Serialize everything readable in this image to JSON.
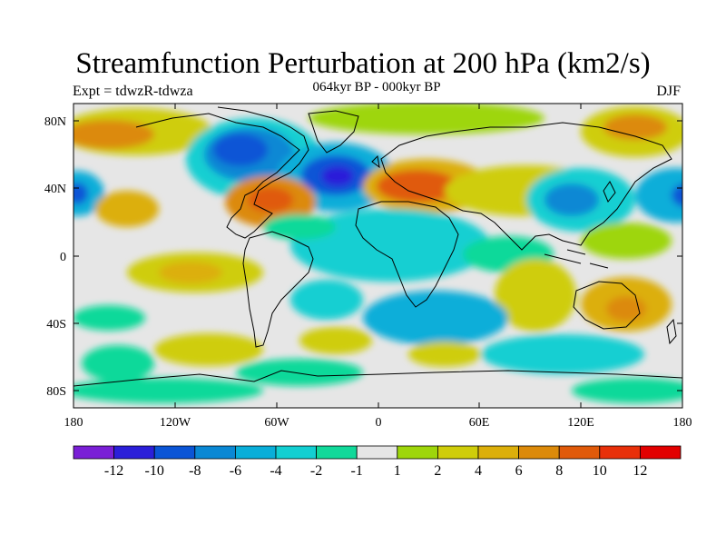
{
  "title": "Streamfunction Perturbation at 200 hPa (km2/s)",
  "subtitle": "064kyr BP - 000kyr BP",
  "left_label": "Expt = tdwzR-tdwza",
  "right_label": "DJF",
  "y_ticks": [
    "80N",
    "40N",
    "0",
    "40S",
    "80S"
  ],
  "x_ticks": [
    "180",
    "120W",
    "60W",
    "0",
    "60E",
    "120E",
    "180"
  ],
  "colorbar": {
    "labels": [
      "-12",
      "-10",
      "-8",
      "-6",
      "-4",
      "-2",
      "-1",
      "1",
      "2",
      "4",
      "6",
      "8",
      "10",
      "12"
    ],
    "colors": [
      "#7a1fd6",
      "#2b1fd9",
      "#0b55d6",
      "#0a88d4",
      "#09aed9",
      "#12cfd2",
      "#11d99a",
      "#e6e6e6",
      "#9ed60b",
      "#cfcd0a",
      "#dcaf0a",
      "#dc8a0a",
      "#e05a0a",
      "#e8300a",
      "#e20000"
    ]
  },
  "map": {
    "background": "#e6e6e6",
    "coastline_color": "#000000"
  }
}
